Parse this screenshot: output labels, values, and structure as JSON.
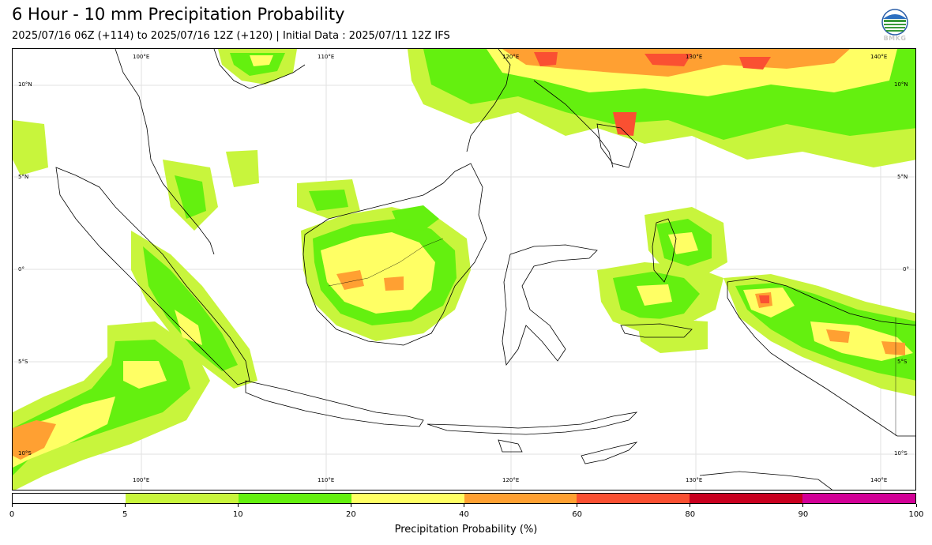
{
  "header": {
    "title": "6 Hour - 10 mm Precipitation Probability",
    "subtitle": "2025/07/16 06Z (+114) to 2025/07/16 12Z (+120) | Initial Data : 2025/07/11 12Z IFS",
    "logo_text": "BMKG"
  },
  "map": {
    "lon_labels": [
      "100°E",
      "110°E",
      "120°E",
      "130°E",
      "140°E"
    ],
    "lat_labels_left": [
      "10°N",
      "5°N",
      "0°",
      "5°S",
      "10°S"
    ],
    "lat_labels_right": [
      "10°N",
      "5°N",
      "0°",
      "5°S",
      "10°S"
    ],
    "lon_range": [
      93,
      142
    ],
    "lat_range": [
      -12,
      12
    ],
    "gridlines": true
  },
  "colorbar": {
    "title": "Precipitation Probability (%)",
    "bounds": [
      "0",
      "5",
      "10",
      "20",
      "40",
      "60",
      "80",
      "90",
      "100"
    ],
    "colors": [
      "#ffffff",
      "#c8f53c",
      "#64f00f",
      "#ffff64",
      "#ffa032",
      "#fa5032",
      "#c8001e",
      "#d20096"
    ]
  }
}
